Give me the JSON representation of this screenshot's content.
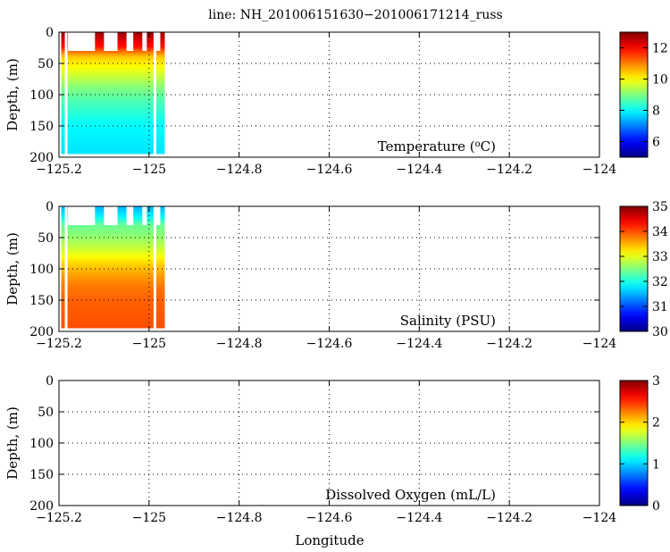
{
  "chart_data": {
    "title": "line: NH_201006151630−201006171214_russ",
    "xlabel": "Longitude",
    "xlim": [
      -125.2,
      -124.0
    ],
    "x_ticks": [
      -125.2,
      -125.0,
      -124.8,
      -124.6,
      -124.4,
      -124.2,
      -124.0
    ],
    "x_tick_labels": [
      "−125.2",
      "−125",
      "−124.8",
      "−124.6",
      "−124.4",
      "−124.2",
      "−124"
    ],
    "grid": "dotted",
    "colormap": "jet",
    "panels": [
      {
        "type": "heatmap",
        "variable": "Temperature",
        "label_prefix": "Temperature (",
        "label_sup": "o",
        "label_suffix": "C)",
        "ylabel": "Depth, (m)",
        "ylim": [
          0,
          200
        ],
        "y_ticks": [
          0,
          50,
          100,
          150,
          200
        ],
        "y_tick_labels": [
          "0",
          "50",
          "100",
          "150",
          "200"
        ],
        "clim": [
          5,
          13
        ],
        "cbar_ticks": [
          6,
          8,
          10,
          12
        ],
        "cbar_tick_labels": [
          "6",
          "8",
          "10",
          "12"
        ],
        "profile_lon_range": [
          -125.195,
          -124.965
        ],
        "max_depth": 195,
        "surface_gaps": [
          [
            -125.18,
            -125.12
          ],
          [
            -125.1,
            -125.07
          ],
          [
            -125.05,
            -125.035
          ],
          [
            -125.015,
            -125.005
          ],
          [
            -124.985,
            -124.975
          ]
        ],
        "gap_bottom_depth": 30,
        "data_gaps": [
          [
            -125.187,
            -125.181
          ],
          [
            -124.99,
            -124.984
          ]
        ],
        "profile": [
          [
            0,
            12.8
          ],
          [
            10,
            12.4
          ],
          [
            25,
            11.8
          ],
          [
            30,
            11.2
          ],
          [
            40,
            10.4
          ],
          [
            55,
            10.0
          ],
          [
            70,
            9.6
          ],
          [
            90,
            9.0
          ],
          [
            110,
            8.6
          ],
          [
            130,
            8.3
          ],
          [
            150,
            8.0
          ],
          [
            170,
            7.9
          ],
          [
            195,
            7.8
          ]
        ]
      },
      {
        "type": "heatmap",
        "variable": "Salinity",
        "label_prefix": "Salinity (PSU)",
        "label_sup": "",
        "label_suffix": "",
        "ylabel": "Depth, (m)",
        "ylim": [
          0,
          200
        ],
        "y_ticks": [
          0,
          50,
          100,
          150,
          200
        ],
        "y_tick_labels": [
          "0",
          "50",
          "100",
          "150",
          "200"
        ],
        "clim": [
          30,
          35
        ],
        "cbar_ticks": [
          30,
          31,
          32,
          33,
          34,
          35
        ],
        "cbar_tick_labels": [
          "30",
          "31",
          "32",
          "33",
          "34",
          "35"
        ],
        "profile_lon_range": [
          -125.195,
          -124.965
        ],
        "max_depth": 195,
        "surface_gaps": [
          [
            -125.18,
            -125.12
          ],
          [
            -125.1,
            -125.07
          ],
          [
            -125.05,
            -125.035
          ],
          [
            -125.015,
            -125.005
          ],
          [
            -124.985,
            -124.975
          ]
        ],
        "gap_bottom_depth": 30,
        "data_gaps": [
          [
            -125.187,
            -125.181
          ],
          [
            -124.99,
            -124.984
          ]
        ],
        "profile": [
          [
            0,
            31.5
          ],
          [
            15,
            31.8
          ],
          [
            30,
            32.4
          ],
          [
            50,
            32.6
          ],
          [
            70,
            32.9
          ],
          [
            90,
            33.3
          ],
          [
            110,
            33.6
          ],
          [
            130,
            33.8
          ],
          [
            150,
            33.9
          ],
          [
            195,
            34.0
          ]
        ]
      },
      {
        "type": "heatmap",
        "variable": "Dissolved Oxygen",
        "label_prefix": "Dissolved Oxygen (mL/L)",
        "label_sup": "",
        "label_suffix": "",
        "ylabel": "Depth, (m)",
        "ylim": [
          0,
          200
        ],
        "y_ticks": [
          0,
          50,
          100,
          150,
          200
        ],
        "y_tick_labels": [
          "0",
          "50",
          "100",
          "150",
          "200"
        ],
        "clim": [
          0,
          3
        ],
        "cbar_ticks": [
          0,
          1,
          2,
          3
        ],
        "cbar_tick_labels": [
          "0",
          "1",
          "2",
          "3"
        ],
        "profile": []
      }
    ]
  }
}
